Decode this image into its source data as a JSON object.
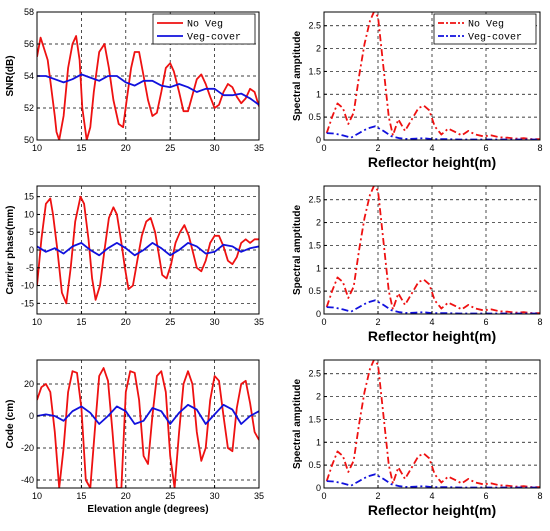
{
  "figure": {
    "legend_no_veg": "No Veg",
    "legend_veg_cover": "Veg-cover",
    "colors": {
      "no_veg": "#ee1111",
      "veg_cover": "#1111dd"
    }
  },
  "chart_data": [
    {
      "type": "line",
      "panel": "snr",
      "ylabel": "SNR(dB)",
      "xlabel": "",
      "xlim": [
        10,
        35
      ],
      "ylim": [
        50,
        58
      ],
      "xticks": [
        10,
        15,
        20,
        25,
        30,
        35
      ],
      "yticks": [
        50,
        52,
        54,
        56,
        58
      ],
      "grid": true,
      "legend": "top-right",
      "series": [
        {
          "name": "No Veg",
          "color": "#ee1111",
          "style": "solid",
          "x": [
            10,
            10.4,
            11.2,
            12.0,
            12.2,
            12.5,
            13.0,
            13.5,
            14.0,
            14.4,
            14.8,
            15.1,
            15.6,
            16.0,
            16.4,
            17.0,
            17.6,
            18.1,
            18.6,
            19.2,
            19.7,
            20.1,
            20.6,
            21.0,
            21.5,
            22.0,
            22.5,
            23.0,
            23.5,
            24.0,
            24.5,
            25.0,
            25.4,
            26.0,
            26.5,
            27.0,
            27.5,
            28.0,
            28.5,
            29.0,
            29.5,
            30.0,
            30.5,
            31.0,
            31.5,
            32.0,
            32.5,
            33.0,
            33.5,
            34.0,
            34.5,
            35.0
          ],
          "y": [
            55.2,
            56.4,
            55.0,
            51.5,
            50.5,
            50.0,
            51.5,
            54.5,
            56.0,
            56.5,
            55.0,
            52.0,
            50.0,
            50.8,
            53.0,
            55.5,
            56.0,
            54.5,
            52.5,
            51.0,
            50.8,
            52.5,
            54.5,
            55.5,
            55.5,
            54.0,
            52.5,
            51.5,
            51.7,
            53.0,
            54.5,
            54.8,
            54.3,
            53.0,
            51.8,
            51.8,
            52.8,
            53.8,
            54.1,
            53.5,
            52.7,
            52.0,
            52.2,
            53.0,
            53.5,
            53.3,
            52.7,
            52.3,
            52.6,
            53.2,
            53.0,
            52.1
          ]
        },
        {
          "name": "Veg-cover",
          "color": "#1111dd",
          "style": "solid",
          "x": [
            10,
            11,
            12,
            13,
            14,
            15,
            16,
            17,
            18,
            19,
            20,
            21,
            22,
            23,
            24,
            25,
            26,
            27,
            28,
            29,
            30,
            31,
            32,
            33,
            34,
            35
          ],
          "y": [
            54.0,
            54.0,
            53.8,
            53.6,
            53.8,
            54.1,
            53.9,
            53.7,
            54.0,
            54.0,
            53.6,
            53.4,
            53.7,
            53.7,
            53.4,
            53.3,
            53.5,
            53.3,
            53.0,
            53.2,
            53.2,
            52.8,
            52.8,
            52.9,
            52.6,
            52.2
          ]
        }
      ]
    },
    {
      "type": "line",
      "panel": "snr_spectrum",
      "ylabel": "Spectral amptitude",
      "xlabel": "Reflector height(m)",
      "xlim": [
        0,
        8
      ],
      "ylim": [
        0,
        2.8
      ],
      "xticks": [
        0,
        2,
        4,
        6,
        8
      ],
      "yticks": [
        0,
        0.5,
        1,
        1.5,
        2,
        2.5
      ],
      "grid": true,
      "legend": "top-right",
      "series": [
        {
          "name": "No Veg",
          "color": "#ee1111",
          "style": "dashdot",
          "x": [
            0.1,
            0.3,
            0.5,
            0.7,
            0.9,
            1.1,
            1.3,
            1.5,
            1.7,
            1.85,
            2.0,
            2.2,
            2.4,
            2.55,
            2.75,
            3.0,
            3.25,
            3.5,
            3.7,
            3.9,
            4.1,
            4.35,
            4.6,
            4.85,
            5.1,
            5.35,
            5.6,
            5.9,
            6.2,
            6.5,
            6.8,
            7.1,
            7.4,
            7.7,
            8.0
          ],
          "y": [
            0.15,
            0.5,
            0.8,
            0.7,
            0.35,
            0.6,
            1.4,
            2.1,
            2.6,
            2.8,
            2.7,
            1.6,
            0.5,
            0.1,
            0.45,
            0.2,
            0.45,
            0.7,
            0.75,
            0.65,
            0.3,
            0.12,
            0.25,
            0.18,
            0.1,
            0.2,
            0.12,
            0.08,
            0.1,
            0.06,
            0.05,
            0.03,
            0.04,
            0.02,
            0.02
          ]
        },
        {
          "name": "Veg-cover",
          "color": "#1111dd",
          "style": "dashdot",
          "x": [
            0.1,
            0.4,
            0.7,
            1.0,
            1.3,
            1.6,
            1.9,
            2.2,
            2.5,
            2.8,
            3.1,
            3.4,
            3.7,
            4.0,
            4.5,
            5.0,
            5.5,
            6.0,
            7.0,
            8.0
          ],
          "y": [
            0.15,
            0.14,
            0.1,
            0.05,
            0.15,
            0.25,
            0.3,
            0.2,
            0.08,
            0.04,
            0.02,
            0.03,
            0.04,
            0.02,
            0.02,
            0.01,
            0.01,
            0.01,
            0.01,
            0.01
          ]
        }
      ]
    },
    {
      "type": "line",
      "panel": "carrier",
      "ylabel": "Carrier phase(mm)",
      "xlabel": "",
      "xlim": [
        10,
        35
      ],
      "ylim": [
        -18,
        18
      ],
      "xticks": [
        10,
        15,
        20,
        25,
        30,
        35
      ],
      "yticks": [
        -15,
        -10,
        -5,
        0,
        5,
        10,
        15
      ],
      "grid": true,
      "series": [
        {
          "name": "No Veg",
          "color": "#ee1111",
          "style": "solid",
          "x": [
            10,
            10.5,
            11.0,
            11.5,
            11.8,
            12.3,
            12.8,
            13.3,
            13.8,
            14.3,
            14.9,
            15.3,
            15.8,
            16.2,
            16.6,
            17.1,
            17.6,
            18.1,
            18.6,
            19.0,
            19.5,
            19.9,
            20.3,
            20.8,
            21.3,
            21.8,
            22.3,
            22.8,
            23.3,
            23.7,
            24.1,
            24.6,
            25.1,
            25.6,
            26.1,
            26.6,
            27.1,
            27.6,
            28.0,
            28.5,
            29.0,
            29.5,
            30.0,
            30.5,
            31.0,
            31.5,
            32.0,
            32.5,
            33.0,
            33.5,
            34.0,
            34.5,
            35.0
          ],
          "y": [
            -10,
            3,
            13,
            14.5,
            10,
            0,
            -12,
            -15,
            -5,
            8,
            15,
            13,
            3,
            -8,
            -14,
            -10,
            0,
            9,
            12,
            10,
            2,
            -5,
            -11,
            -10,
            -3,
            4,
            8,
            9,
            5,
            -1,
            -7,
            -8,
            -4,
            2,
            5,
            7,
            4,
            -1,
            -5,
            -6,
            -3,
            2,
            4,
            4,
            1,
            -3,
            -4,
            -2,
            2,
            3,
            2,
            3,
            3
          ]
        },
        {
          "name": "Veg-cover",
          "color": "#1111dd",
          "style": "solid",
          "x": [
            10,
            11,
            12,
            13,
            14,
            15,
            16,
            17,
            18,
            19,
            20,
            21,
            22,
            23,
            24,
            25,
            26,
            27,
            28,
            29,
            30,
            31,
            32,
            33,
            34,
            35
          ],
          "y": [
            1.0,
            -0.5,
            0.5,
            -1.0,
            1.0,
            2.0,
            0.0,
            -1.5,
            0.5,
            2.0,
            0.5,
            -1.5,
            0.0,
            2.0,
            0.5,
            -1.5,
            0.0,
            2.0,
            1.0,
            -1.0,
            -0.5,
            1.5,
            1.0,
            -0.5,
            0.5,
            1.0
          ]
        }
      ]
    },
    {
      "type": "line",
      "panel": "carrier_spectrum",
      "ylabel": "Spectral amptitude",
      "xlabel": "Reflector height(m)",
      "xlim": [
        0,
        8
      ],
      "ylim": [
        0,
        2.8
      ],
      "xticks": [
        0,
        2,
        4,
        6,
        8
      ],
      "yticks": [
        0,
        0.5,
        1,
        1.5,
        2,
        2.5
      ],
      "grid": true,
      "series": [
        {
          "name": "No Veg",
          "color": "#ee1111",
          "style": "dashdot",
          "x": [
            0.1,
            0.3,
            0.5,
            0.7,
            0.9,
            1.1,
            1.3,
            1.5,
            1.7,
            1.85,
            2.0,
            2.2,
            2.4,
            2.55,
            2.75,
            3.0,
            3.25,
            3.5,
            3.7,
            3.9,
            4.1,
            4.35,
            4.6,
            4.85,
            5.1,
            5.35,
            5.6,
            5.9,
            6.2,
            6.5,
            6.8,
            7.1,
            7.4,
            7.7,
            8.0
          ],
          "y": [
            0.15,
            0.5,
            0.8,
            0.7,
            0.35,
            0.6,
            1.4,
            2.1,
            2.6,
            2.8,
            2.7,
            1.6,
            0.5,
            0.1,
            0.45,
            0.2,
            0.45,
            0.7,
            0.75,
            0.65,
            0.3,
            0.12,
            0.25,
            0.18,
            0.1,
            0.2,
            0.12,
            0.08,
            0.1,
            0.06,
            0.05,
            0.03,
            0.04,
            0.02,
            0.02
          ]
        },
        {
          "name": "Veg-cover",
          "color": "#1111dd",
          "style": "dashdot",
          "x": [
            0.1,
            0.4,
            0.7,
            1.0,
            1.3,
            1.6,
            1.9,
            2.2,
            2.5,
            2.8,
            3.1,
            3.4,
            3.7,
            4.0,
            4.5,
            5.0,
            5.5,
            6.0,
            7.0,
            8.0
          ],
          "y": [
            0.15,
            0.14,
            0.1,
            0.05,
            0.15,
            0.25,
            0.3,
            0.2,
            0.08,
            0.04,
            0.02,
            0.03,
            0.04,
            0.02,
            0.02,
            0.01,
            0.01,
            0.01,
            0.01,
            0.01
          ]
        }
      ]
    },
    {
      "type": "line",
      "panel": "code",
      "ylabel": "Code (cm)",
      "xlabel": "Elevation angle (degrees)",
      "xlim": [
        10,
        35
      ],
      "ylim": [
        -45,
        35
      ],
      "xticks": [
        10,
        15,
        20,
        25,
        30,
        35
      ],
      "yticks": [
        -40,
        -20,
        0,
        20
      ],
      "grid": true,
      "series": [
        {
          "name": "No Veg",
          "color": "#ee1111",
          "style": "solid",
          "x": [
            10,
            10.5,
            11.0,
            11.5,
            12.0,
            12.5,
            13.0,
            13.5,
            14.0,
            14.5,
            15.0,
            15.5,
            16.0,
            16.5,
            17.0,
            17.5,
            18.0,
            18.5,
            19.0,
            19.5,
            20.0,
            20.5,
            21.0,
            21.5,
            22.0,
            22.5,
            23.0,
            23.5,
            24.0,
            24.5,
            25.0,
            25.5,
            26.0,
            26.5,
            27.0,
            27.5,
            28.0,
            28.5,
            29.0,
            29.5,
            30.0,
            30.5,
            31.0,
            31.5,
            32.0,
            32.5,
            33.0,
            33.5,
            34.0,
            34.5,
            35.0
          ],
          "y": [
            10,
            18,
            20,
            15,
            -10,
            -45,
            -20,
            15,
            28,
            27,
            5,
            -40,
            -45,
            -10,
            25,
            30,
            22,
            -10,
            -45,
            -45,
            15,
            28,
            27,
            10,
            -25,
            -30,
            0,
            25,
            28,
            15,
            -25,
            -45,
            -10,
            20,
            28,
            20,
            -10,
            -28,
            -20,
            10,
            25,
            22,
            0,
            -20,
            -22,
            5,
            20,
            22,
            8,
            -10,
            -15
          ]
        },
        {
          "name": "Veg-cover",
          "color": "#1111dd",
          "style": "solid",
          "x": [
            10,
            11,
            12,
            13,
            14,
            15,
            16,
            17,
            18,
            19,
            20,
            21,
            22,
            23,
            24,
            25,
            26,
            27,
            28,
            29,
            30,
            31,
            32,
            33,
            34,
            35
          ],
          "y": [
            0,
            1,
            0,
            -3,
            3,
            6,
            2,
            -5,
            0,
            6,
            3,
            -5,
            -3,
            5,
            3,
            -5,
            2,
            7,
            4,
            -5,
            1,
            7,
            4,
            -5,
            0,
            3
          ]
        }
      ]
    },
    {
      "type": "line",
      "panel": "code_spectrum",
      "ylabel": "Spectral amptitude",
      "xlabel": "Reflector height(m)",
      "xlim": [
        0,
        8
      ],
      "ylim": [
        0,
        2.8
      ],
      "xticks": [
        0,
        2,
        4,
        6,
        8
      ],
      "yticks": [
        0,
        0.5,
        1,
        1.5,
        2,
        2.5
      ],
      "grid": true,
      "series": [
        {
          "name": "No Veg",
          "color": "#ee1111",
          "style": "dashdot",
          "x": [
            0.1,
            0.3,
            0.5,
            0.7,
            0.9,
            1.1,
            1.3,
            1.5,
            1.7,
            1.85,
            2.0,
            2.2,
            2.4,
            2.55,
            2.75,
            3.0,
            3.25,
            3.5,
            3.7,
            3.9,
            4.1,
            4.35,
            4.6,
            4.85,
            5.1,
            5.35,
            5.6,
            5.9,
            6.2,
            6.5,
            6.8,
            7.1,
            7.4,
            7.7,
            8.0
          ],
          "y": [
            0.15,
            0.5,
            0.8,
            0.7,
            0.35,
            0.6,
            1.4,
            2.1,
            2.6,
            2.8,
            2.7,
            1.6,
            0.5,
            0.1,
            0.45,
            0.2,
            0.45,
            0.7,
            0.75,
            0.65,
            0.3,
            0.12,
            0.25,
            0.18,
            0.1,
            0.2,
            0.12,
            0.08,
            0.1,
            0.06,
            0.05,
            0.03,
            0.04,
            0.02,
            0.02
          ]
        },
        {
          "name": "Veg-cover",
          "color": "#1111dd",
          "style": "dashdot",
          "x": [
            0.1,
            0.4,
            0.7,
            1.0,
            1.3,
            1.6,
            1.9,
            2.2,
            2.5,
            2.8,
            3.1,
            3.4,
            3.7,
            4.0,
            4.5,
            5.0,
            5.5,
            6.0,
            7.0,
            8.0
          ],
          "y": [
            0.15,
            0.14,
            0.1,
            0.05,
            0.15,
            0.25,
            0.3,
            0.2,
            0.08,
            0.04,
            0.02,
            0.03,
            0.04,
            0.02,
            0.02,
            0.01,
            0.01,
            0.01,
            0.01,
            0.01
          ]
        }
      ]
    }
  ]
}
